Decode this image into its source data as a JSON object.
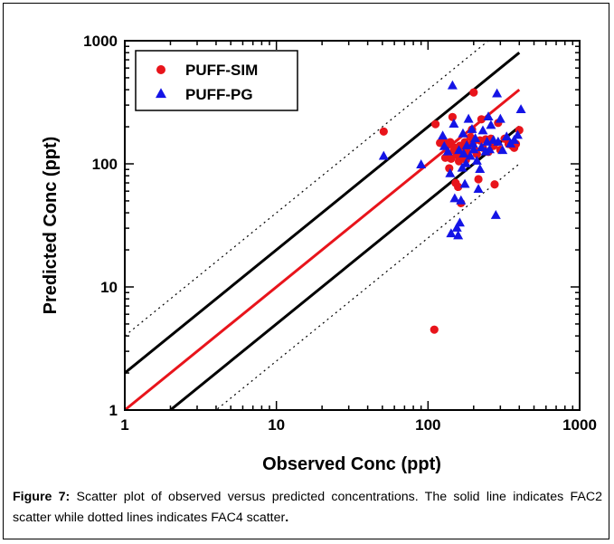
{
  "chart_data": {
    "type": "scatter",
    "title": "",
    "xlabel": "Observed Conc (ppt)",
    "ylabel": "Predicted Conc (ppt)",
    "xscale": "log",
    "yscale": "log",
    "xlim": [
      1,
      1000
    ],
    "ylim": [
      1,
      1000
    ],
    "x_ticks": [
      "1",
      "10",
      "100",
      "1000"
    ],
    "y_ticks": [
      "1",
      "10",
      "100",
      "1000"
    ],
    "grid": false,
    "legend_position": "top-left",
    "reference_lines": [
      {
        "kind": "1:1",
        "factor": 1,
        "style": "solid",
        "color": "#e8141b"
      },
      {
        "kind": "FAC2 upper",
        "factor": 2,
        "style": "solid",
        "color": "#000000"
      },
      {
        "kind": "FAC2 lower",
        "factor": 0.5,
        "style": "solid",
        "color": "#000000"
      },
      {
        "kind": "FAC4 upper",
        "factor": 4,
        "style": "dotted",
        "color": "#000000"
      },
      {
        "kind": "FAC4 lower",
        "factor": 0.25,
        "style": "dotted",
        "color": "#000000"
      }
    ],
    "series": [
      {
        "name": "PUFF-SIM",
        "marker": "circle",
        "color": "#e8141b",
        "points": [
          [
            51,
            183
          ],
          [
            110,
            4.5
          ],
          [
            112,
            210
          ],
          [
            120,
            148
          ],
          [
            125,
            155
          ],
          [
            130,
            112
          ],
          [
            135,
            142
          ],
          [
            138,
            92
          ],
          [
            140,
            150
          ],
          [
            142,
            110
          ],
          [
            145,
            240
          ],
          [
            148,
            128
          ],
          [
            150,
            135
          ],
          [
            152,
            70
          ],
          [
            155,
            118
          ],
          [
            158,
            65
          ],
          [
            160,
            105
          ],
          [
            162,
            140
          ],
          [
            165,
            48
          ],
          [
            168,
            120
          ],
          [
            170,
            115
          ],
          [
            172,
            132
          ],
          [
            175,
            150
          ],
          [
            178,
            108
          ],
          [
            180,
            125
          ],
          [
            185,
            140
          ],
          [
            190,
            165
          ],
          [
            195,
            190
          ],
          [
            198,
            150
          ],
          [
            200,
            380
          ],
          [
            205,
            128
          ],
          [
            210,
            120
          ],
          [
            215,
            75
          ],
          [
            220,
            155
          ],
          [
            225,
            230
          ],
          [
            230,
            135
          ],
          [
            240,
            158
          ],
          [
            250,
            125
          ],
          [
            260,
            160
          ],
          [
            270,
            140
          ],
          [
            275,
            68
          ],
          [
            290,
            215
          ],
          [
            300,
            130
          ],
          [
            320,
            160
          ],
          [
            340,
            145
          ],
          [
            360,
            140
          ],
          [
            370,
            135
          ],
          [
            380,
            145
          ],
          [
            400,
            188
          ]
        ]
      },
      {
        "name": "PUFF-PG",
        "marker": "triangle",
        "color": "#1414e6",
        "points": [
          [
            51,
            115
          ],
          [
            90,
            98
          ],
          [
            125,
            168
          ],
          [
            128,
            138
          ],
          [
            135,
            125
          ],
          [
            140,
            83
          ],
          [
            142,
            27
          ],
          [
            145,
            430
          ],
          [
            148,
            210
          ],
          [
            150,
            52
          ],
          [
            155,
            30
          ],
          [
            158,
            26
          ],
          [
            160,
            128
          ],
          [
            162,
            33
          ],
          [
            165,
            50
          ],
          [
            168,
            92
          ],
          [
            170,
            175
          ],
          [
            172,
            120
          ],
          [
            175,
            68
          ],
          [
            178,
            100
          ],
          [
            180,
            140
          ],
          [
            185,
            230
          ],
          [
            190,
            115
          ],
          [
            195,
            190
          ],
          [
            198,
            145
          ],
          [
            200,
            130
          ],
          [
            205,
            160
          ],
          [
            210,
            105
          ],
          [
            215,
            62
          ],
          [
            220,
            90
          ],
          [
            225,
            135
          ],
          [
            230,
            185
          ],
          [
            240,
            125
          ],
          [
            245,
            150
          ],
          [
            250,
            240
          ],
          [
            255,
            130
          ],
          [
            260,
            205
          ],
          [
            270,
            155
          ],
          [
            280,
            38
          ],
          [
            285,
            370
          ],
          [
            290,
            150
          ],
          [
            300,
            230
          ],
          [
            310,
            128
          ],
          [
            330,
            165
          ],
          [
            350,
            145
          ],
          [
            370,
            155
          ],
          [
            390,
            170
          ],
          [
            410,
            275
          ]
        ]
      }
    ]
  },
  "caption": {
    "label": "Figure 7:",
    "text": " Scatter plot of observed versus predicted concentrations. The solid line indicates FAC2 scatter while dotted lines indicates FAC4 scatter",
    "end": "."
  }
}
